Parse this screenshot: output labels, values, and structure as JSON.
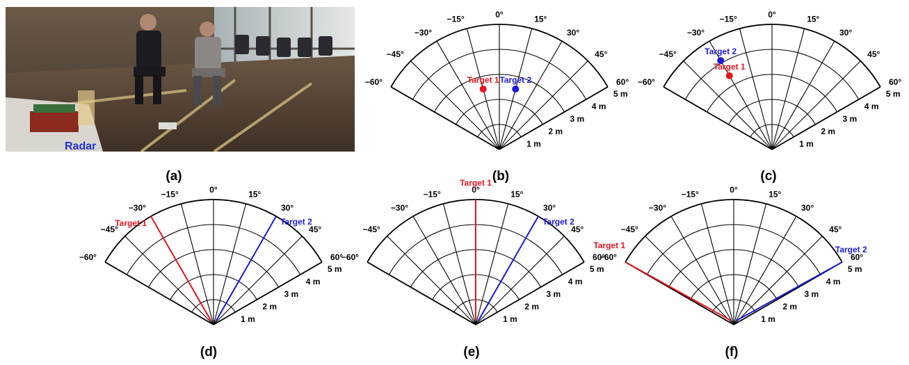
{
  "photo": {
    "label": "Radar",
    "label_color": "#1f2fd6"
  },
  "panel_captions": [
    "(a)",
    "(b)",
    "(c)",
    "(d)",
    "(e)",
    "(f)"
  ],
  "polar_grid": {
    "angle_ticks_deg": [
      -60,
      -45,
      -30,
      -15,
      0,
      15,
      30,
      45,
      60
    ],
    "angle_labels": [
      "−60°",
      "−45°",
      "−30°",
      "−15°",
      "0°",
      "15°",
      "30°",
      "45°",
      "60°"
    ],
    "range_ticks_m": [
      1,
      2,
      3,
      4,
      5
    ],
    "range_labels": [
      "1 m",
      "2 m",
      "3 m",
      "4 m",
      "5 m"
    ],
    "range_max_m": 5
  },
  "colors": {
    "target1": "#e8141e",
    "target2": "#1a1ad8",
    "grid": "#000000"
  },
  "target_labels": {
    "target1": "Target 1",
    "target2": "Target 2"
  },
  "panels": [
    {
      "id": "b",
      "kind": "points",
      "targets": [
        {
          "key": "target1",
          "angle_deg": -15,
          "range_m": 2.5
        },
        {
          "key": "target2",
          "angle_deg": 15,
          "range_m": 2.5
        }
      ]
    },
    {
      "id": "c",
      "kind": "points",
      "targets": [
        {
          "key": "target1",
          "angle_deg": -30,
          "range_m": 3.4
        },
        {
          "key": "target2",
          "angle_deg": -30,
          "range_m": 4.1
        }
      ]
    },
    {
      "id": "d",
      "kind": "rays",
      "targets": [
        {
          "key": "target1",
          "angle_deg": -30
        },
        {
          "key": "target2",
          "angle_deg": 30
        }
      ]
    },
    {
      "id": "e",
      "kind": "rays",
      "targets": [
        {
          "key": "target1",
          "angle_deg": 0
        },
        {
          "key": "target2",
          "angle_deg": 30
        }
      ]
    },
    {
      "id": "f",
      "kind": "rays",
      "targets": [
        {
          "key": "target1",
          "angle_deg": -60
        },
        {
          "key": "target2",
          "angle_deg": 60
        }
      ]
    }
  ]
}
